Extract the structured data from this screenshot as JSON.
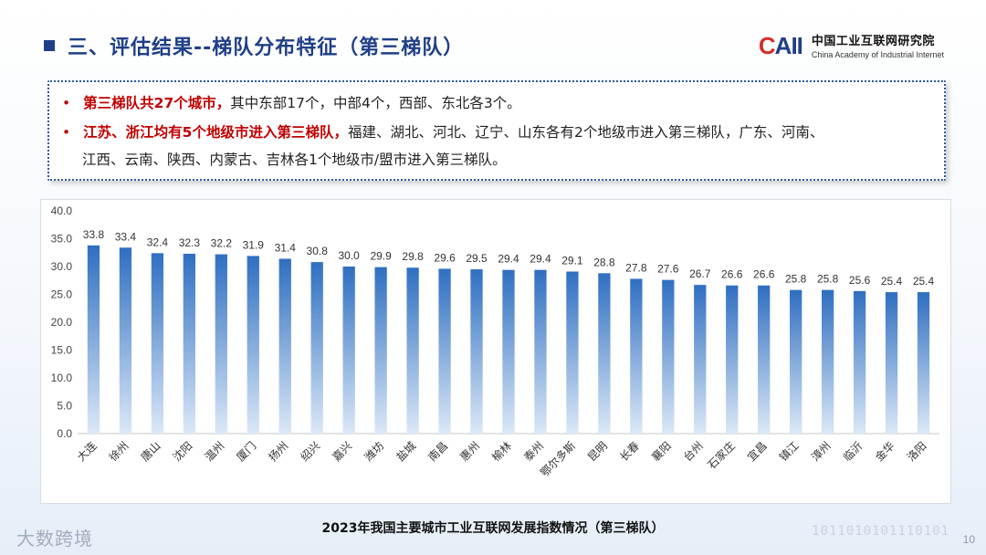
{
  "header": {
    "title": "三、评估结果--梯队分布特征（第三梯队）",
    "logo_mark": "CAII",
    "logo_cn": "中国工业互联网研究院",
    "logo_en": "China Academy of Industrial Internet"
  },
  "bullets": [
    {
      "highlight": "第三梯队共27个城市，",
      "text": "其中东部17个，中部4个，西部、东北各3个。"
    },
    {
      "highlight": "江苏、浙江均有5个地级市进入第三梯队，",
      "text": "福建、湖北、河北、辽宁、山东各有2个地级市进入第三梯队，广东、河南、",
      "text_cont": "江西、云南、陕西、内蒙古、吉林各1个地级市/盟市进入第三梯队。"
    }
  ],
  "chart_data": {
    "type": "bar",
    "title": "2023年我国主要城市工业互联网发展指数情况（第三梯队）",
    "categories": [
      "大连",
      "徐州",
      "唐山",
      "沈阳",
      "温州",
      "厦门",
      "扬州",
      "绍兴",
      "嘉兴",
      "潍坊",
      "盐城",
      "南昌",
      "惠州",
      "榆林",
      "泰州",
      "鄂尔多斯",
      "昆明",
      "长春",
      "襄阳",
      "台州",
      "石家庄",
      "宜昌",
      "镇江",
      "漳州",
      "临沂",
      "金华",
      "洛阳"
    ],
    "values": [
      33.8,
      33.4,
      32.4,
      32.3,
      32.2,
      31.9,
      31.4,
      30.8,
      30.0,
      29.9,
      29.8,
      29.6,
      29.5,
      29.4,
      29.4,
      29.1,
      28.8,
      27.8,
      27.6,
      26.7,
      26.6,
      26.6,
      25.8,
      25.8,
      25.6,
      25.4,
      25.4
    ],
    "value_labels": [
      "33.8",
      "33.4",
      "32.4",
      "32.3",
      "32.2",
      "31.9",
      "31.4",
      "30.8",
      "30.0",
      "29.9",
      "29.8",
      "29.6",
      "29.5",
      "29.4",
      "29.4",
      "29.1",
      "28.8",
      "27.8",
      "27.6",
      "26.7",
      "26.6",
      "26.6",
      "25.8",
      "25.8",
      "25.6",
      "25.4",
      "25.4"
    ],
    "ylim": [
      0,
      40
    ],
    "yticks": [
      "0.0",
      "5.0",
      "10.0",
      "15.0",
      "20.0",
      "25.0",
      "30.0",
      "35.0",
      "40.0"
    ],
    "ytick_values": [
      0,
      5,
      10,
      15,
      20,
      25,
      30,
      35,
      40
    ],
    "grid": false,
    "bar_color_top": "#2f6fc1",
    "bar_color_bottom": "#dbe8f7"
  },
  "footer": {
    "watermark": "大数跨境",
    "page_number": "10",
    "binary": "1011010101110101"
  }
}
